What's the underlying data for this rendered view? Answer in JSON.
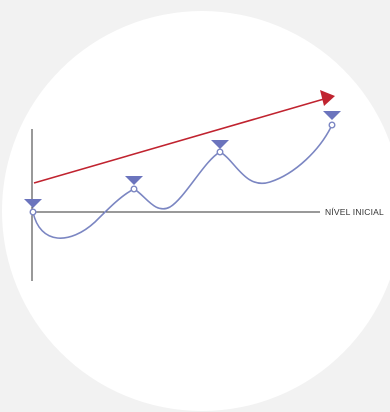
{
  "baseline_label": "NÍVEL INICIAL",
  "colors": {
    "page_background": "#f2f2f2",
    "circle_fill": "#ffffff",
    "axis": "#333333",
    "curve": "#7b86c2",
    "marker_fill": "#6b74bd",
    "trend_arrow": "#c0232f",
    "label": "#333333"
  },
  "markers": [
    {
      "name": "start-peak"
    },
    {
      "name": "peak-2"
    },
    {
      "name": "peak-3"
    },
    {
      "name": "peak-4"
    }
  ]
}
